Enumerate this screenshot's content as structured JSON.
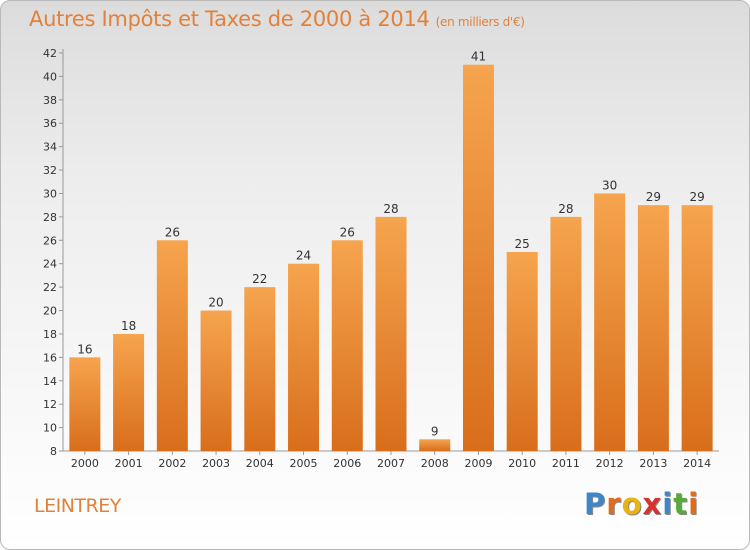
{
  "header": {
    "title": "Autres Impôts et Taxes de 2000 à 2014",
    "subtitle": "(en milliers d'€)"
  },
  "footer": {
    "city": "LEINTREY",
    "logo_letters": [
      "P",
      "r",
      "o",
      "x",
      "i",
      "t",
      "i"
    ],
    "logo_colors": [
      "#3e86c8",
      "#e06c1c",
      "#e8b317",
      "#d6322f",
      "#3e86c8",
      "#5aa83c",
      "#e06c1c"
    ]
  },
  "colors": {
    "bar_top": "#f6a44e",
    "bar_bottom": "#d86e1c",
    "accent": "#e2813a"
  },
  "chart_data": {
    "type": "bar",
    "title": "Autres Impôts et Taxes de 2000 à 2014",
    "subtitle": "(en milliers d'€)",
    "categories": [
      "2000",
      "2001",
      "2002",
      "2003",
      "2004",
      "2005",
      "2006",
      "2007",
      "2008",
      "2009",
      "2010",
      "2011",
      "2012",
      "2013",
      "2014"
    ],
    "values": [
      16,
      18,
      26,
      20,
      22,
      24,
      26,
      28,
      9,
      41,
      25,
      28,
      30,
      29,
      29
    ],
    "ylim": [
      8,
      42
    ],
    "yticks": [
      8,
      10,
      12,
      14,
      16,
      18,
      20,
      22,
      24,
      26,
      28,
      30,
      32,
      34,
      36,
      38,
      40,
      42
    ],
    "grid": false,
    "legend": "none"
  }
}
